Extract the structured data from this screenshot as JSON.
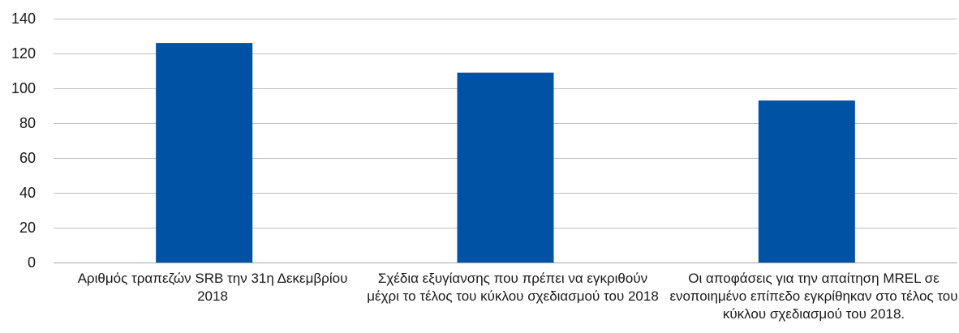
{
  "chart_data": {
    "type": "bar",
    "categories": [
      "Αριθμός τραπεζών SRB την 31η Δεκεμβρίου 2018",
      "Σχέδια εξυγίανσης που πρέπει να εγκριθούν μέχρι το τέλος του κύκλου σχεδιασμού του 2018",
      "Οι αποφάσεις για την απαίτηση MREL σε ενοποιημένο επίπεδο εγκρίθηκαν στο τέλος του κύκλου σχεδιασμού του 2018."
    ],
    "values": [
      126,
      109,
      93
    ],
    "ylim": [
      0,
      140
    ],
    "yticks": [
      0,
      20,
      40,
      60,
      80,
      100,
      120,
      140
    ],
    "grid": true,
    "legend": "none",
    "colors": {
      "bar": "#0052A5",
      "grid": "#bfbfbf",
      "axis": "#a6a6a6"
    }
  }
}
